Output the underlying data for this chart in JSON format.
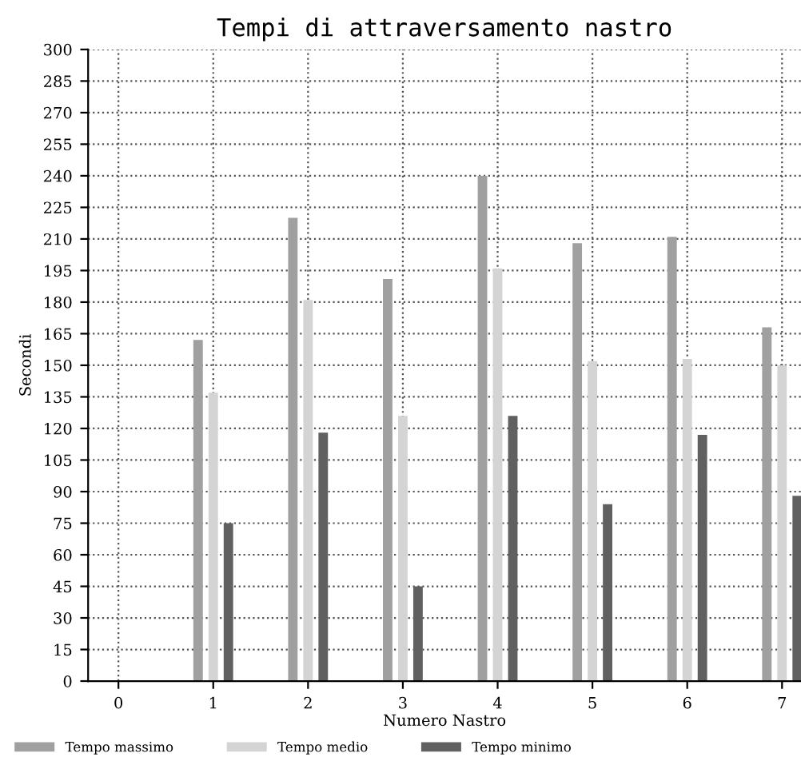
{
  "chart_data": {
    "type": "bar",
    "title": "Tempi di attraversamento nastro",
    "xlabel": "Numero Nastro",
    "ylabel": "Secondi",
    "x": [
      1,
      2,
      3,
      4,
      5,
      6,
      7
    ],
    "series": [
      {
        "name": "Tempo massimo",
        "color": "#a0a0a0",
        "values": [
          162,
          220,
          191,
          240,
          208,
          211,
          168
        ]
      },
      {
        "name": "Tempo medio",
        "color": "#d4d4d4",
        "values": [
          137,
          181,
          126,
          196,
          152,
          153,
          150
        ]
      },
      {
        "name": "Tempo minimo",
        "color": "#606060",
        "values": [
          75,
          118,
          45,
          126,
          84,
          117,
          88
        ]
      }
    ],
    "xlim": [
      -0.32,
      7.2
    ],
    "xticks": [
      0,
      1,
      2,
      3,
      4,
      5,
      6,
      7
    ],
    "ylim": [
      0,
      300
    ],
    "yticks": [
      0,
      15,
      30,
      45,
      60,
      75,
      90,
      105,
      120,
      135,
      150,
      165,
      180,
      195,
      210,
      225,
      240,
      255,
      270,
      285,
      300
    ],
    "grid": true,
    "legend": "bottom"
  }
}
